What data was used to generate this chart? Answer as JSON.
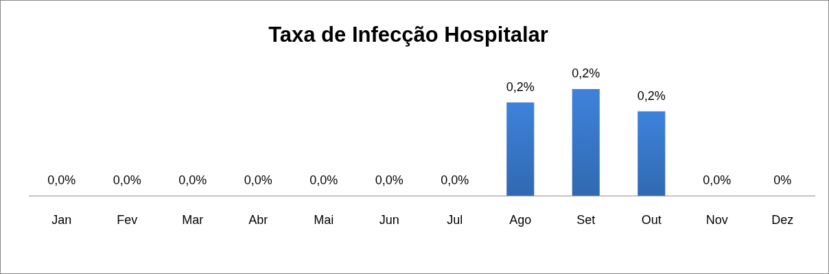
{
  "chart_data": {
    "type": "bar",
    "title": "Taxa de Infecção Hospitalar",
    "categories": [
      "Jan",
      "Fev",
      "Mar",
      "Abr",
      "Mai",
      "Jun",
      "Jul",
      "Ago",
      "Set",
      "Out",
      "Nov",
      "Dez"
    ],
    "values": [
      0,
      0,
      0,
      0,
      0,
      0,
      0,
      0.21,
      0.24,
      0.19,
      0,
      0
    ],
    "value_labels": [
      "0,0%",
      "0,0%",
      "0,0%",
      "0,0%",
      "0,0%",
      "0,0%",
      "0,0%",
      "0,2%",
      "0,2%",
      "0,2%",
      "0,0%",
      "0%"
    ],
    "color": "#3a7bd0"
  }
}
